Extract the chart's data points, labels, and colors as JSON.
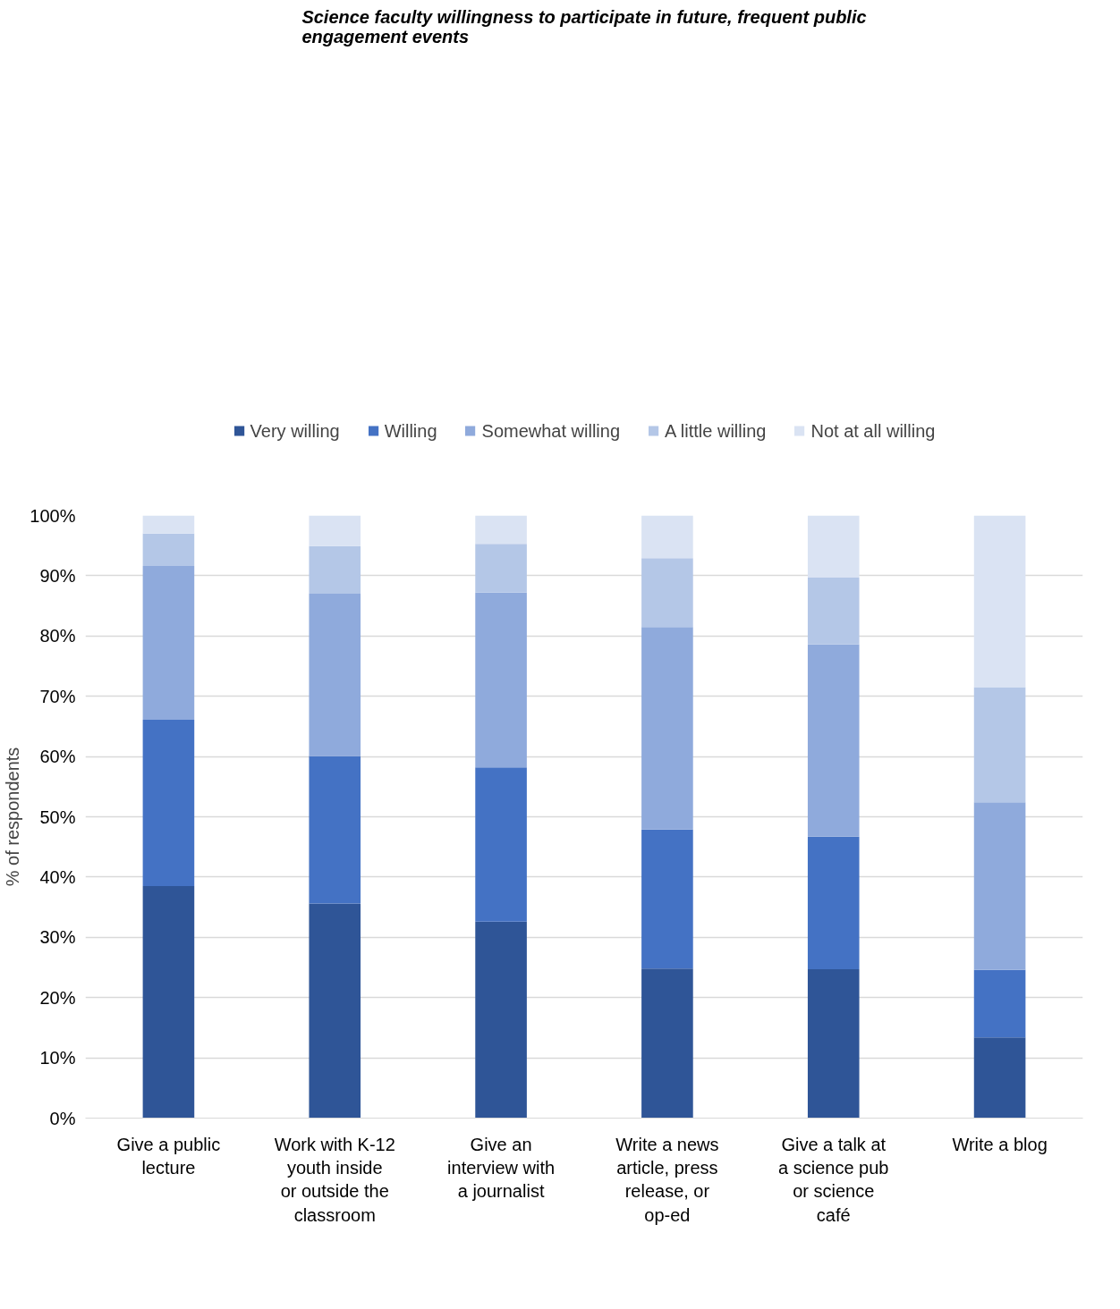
{
  "chart_data": {
    "type": "bar",
    "stacked": true,
    "title": "Science faculty willingness to participate in future, frequent public engagement events",
    "ylabel": "% of respondents",
    "categories": [
      "Give a public lecture",
      "Work with K-12 youth inside or outside the classroom",
      "Give an interview with a journalist",
      "Write a news article, press release, or op-ed",
      "Give a talk at a science pub or science café",
      "Write a blog"
    ],
    "series": [
      {
        "name": "Very willing",
        "color": "#2f5597",
        "values": [
          38.5,
          35.6,
          32.6,
          24.8,
          24.7,
          13.4
        ]
      },
      {
        "name": "Willing",
        "color": "#4472c4",
        "values": [
          27.6,
          24.5,
          25.6,
          23.1,
          22.0,
          11.2
        ]
      },
      {
        "name": "Somewhat willing",
        "color": "#8faadc",
        "values": [
          25.5,
          26.9,
          29.0,
          33.6,
          31.9,
          27.8
        ]
      },
      {
        "name": "A little willing",
        "color": "#b4c7e7",
        "values": [
          5.4,
          7.9,
          8.1,
          11.4,
          11.1,
          19.1
        ]
      },
      {
        "name": "Not at all willing",
        "color": "#dae3f3",
        "values": [
          3.0,
          5.1,
          4.7,
          7.1,
          10.3,
          28.5
        ]
      }
    ],
    "ylim": [
      0,
      100
    ],
    "yticks": [
      {
        "value": 0,
        "label": "0%"
      },
      {
        "value": 10,
        "label": "10%"
      },
      {
        "value": 20,
        "label": "20%"
      },
      {
        "value": 30,
        "label": "30%"
      },
      {
        "value": 40,
        "label": "40%"
      },
      {
        "value": 50,
        "label": "50%"
      },
      {
        "value": 60,
        "label": "60%"
      },
      {
        "value": 70,
        "label": "70%"
      },
      {
        "value": 80,
        "label": "80%"
      },
      {
        "value": 90,
        "label": "90%"
      },
      {
        "value": 100,
        "label": "100%"
      }
    ],
    "grid": "y",
    "legend": "top"
  }
}
